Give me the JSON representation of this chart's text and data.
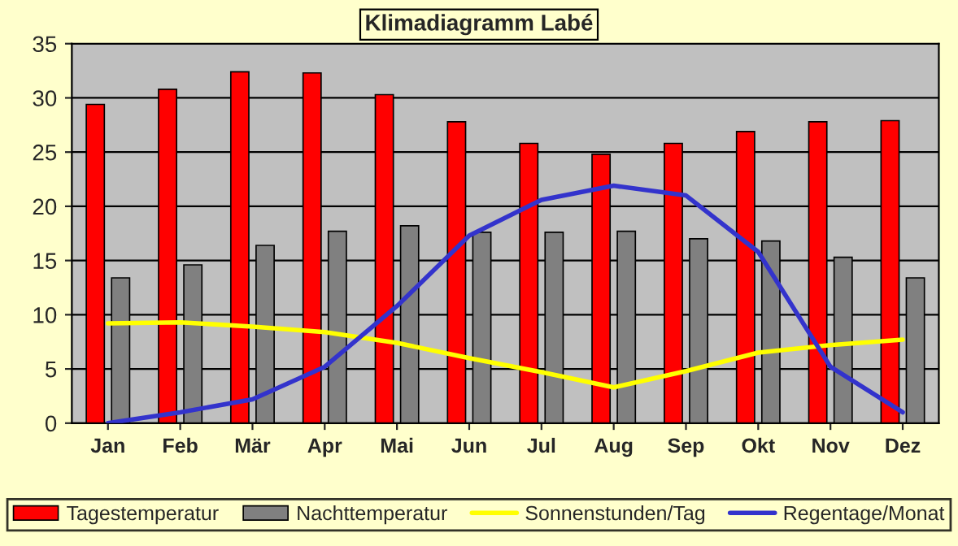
{
  "chart_data": {
    "type": "bar",
    "title": "Klimadiagramm Labé",
    "categories": [
      "Jan",
      "Feb",
      "Mär",
      "Apr",
      "Mai",
      "Jun",
      "Jul",
      "Aug",
      "Sep",
      "Okt",
      "Nov",
      "Dez"
    ],
    "series": [
      {
        "name": "Tagestemperatur",
        "color": "#ff0000",
        "values": [
          29.4,
          30.8,
          32.4,
          32.3,
          30.3,
          27.8,
          25.8,
          24.8,
          25.8,
          26.9,
          27.8,
          27.9
        ]
      },
      {
        "name": "Nachttemperatur",
        "color": "#808080",
        "values": [
          13.4,
          14.6,
          16.4,
          17.7,
          18.2,
          17.6,
          17.6,
          17.7,
          17.0,
          16.8,
          15.3,
          13.4
        ]
      },
      {
        "name": "Sonnenstunden/Tag",
        "type": "line",
        "color": "#ffff00",
        "values": [
          9.2,
          9.3,
          8.9,
          8.4,
          7.4,
          6.0,
          4.7,
          3.3,
          4.8,
          6.5,
          7.2,
          7.7
        ]
      },
      {
        "name": "Regentage/Monat",
        "type": "line",
        "color": "#3333cc",
        "values": [
          0,
          1.0,
          2.2,
          5.2,
          10.8,
          17.3,
          20.6,
          21.9,
          21.0,
          15.8,
          5.2,
          1.0
        ]
      }
    ],
    "ylim": [
      0,
      35
    ],
    "yticks": [
      0,
      5,
      10,
      15,
      20,
      25,
      30,
      35
    ],
    "grid": "y",
    "legend": "bottom",
    "marker": "none",
    "line_style": "solid"
  }
}
